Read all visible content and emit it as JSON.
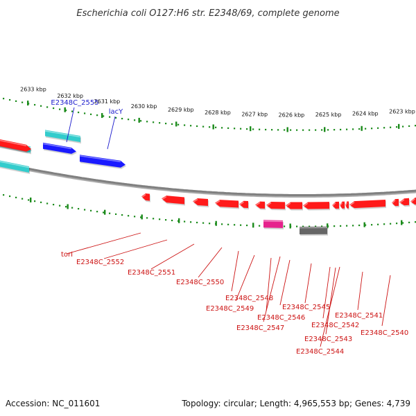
{
  "title": "Escherichia coli O127:H6 str. E2348/69, complete genome",
  "footer": {
    "accession": "Accession: NC_011601",
    "summary": "Topology: circular; Length: 4,965,553 bp; Genes: 4,739"
  },
  "ruler": {
    "ticks": [
      "2633 kbp",
      "2632 kbp",
      "2631 kbp",
      "2630 kbp",
      "2629 kbp",
      "2628 kbp",
      "2627 kbp",
      "2626 kbp",
      "2625 kbp",
      "2624 kbp",
      "2623 kbp"
    ]
  },
  "colors": {
    "backbone": "#808080",
    "forward_cds": "#1a1aff",
    "reverse_cds": "#ff1a1a",
    "forward_gene": "#33cccc",
    "pink_feature": "#e6228c",
    "gray_feature": "#666666",
    "ruler_green": "#1a8a1a",
    "label_blue": "#1a1acc",
    "label_red": "#cc1111"
  },
  "labels": {
    "top": [
      {
        "id": "e2555",
        "text": "E2348C_2555"
      },
      {
        "id": "lacY",
        "text": "lacY"
      }
    ],
    "bottom": [
      {
        "id": "torI",
        "text": "torI"
      },
      {
        "id": "e2552",
        "text": "E2348C_2552"
      },
      {
        "id": "e2551",
        "text": "E2348C_2551"
      },
      {
        "id": "e2550",
        "text": "E2348C_2550"
      },
      {
        "id": "e2548",
        "text": "E2348C_2548"
      },
      {
        "id": "e2549",
        "text": "E2348C_2549"
      },
      {
        "id": "e2547",
        "text": "E2348C_2547"
      },
      {
        "id": "e2546",
        "text": "E2348C_2546"
      },
      {
        "id": "e2545",
        "text": "E2348C_2545"
      },
      {
        "id": "e2542",
        "text": "E2348C_2542"
      },
      {
        "id": "e2541",
        "text": "E2348C_2541"
      },
      {
        "id": "e2543",
        "text": "E2348C_2543"
      },
      {
        "id": "e2540",
        "text": "E2348C_2540"
      },
      {
        "id": "e2544",
        "text": "E2348C_2544"
      }
    ]
  }
}
